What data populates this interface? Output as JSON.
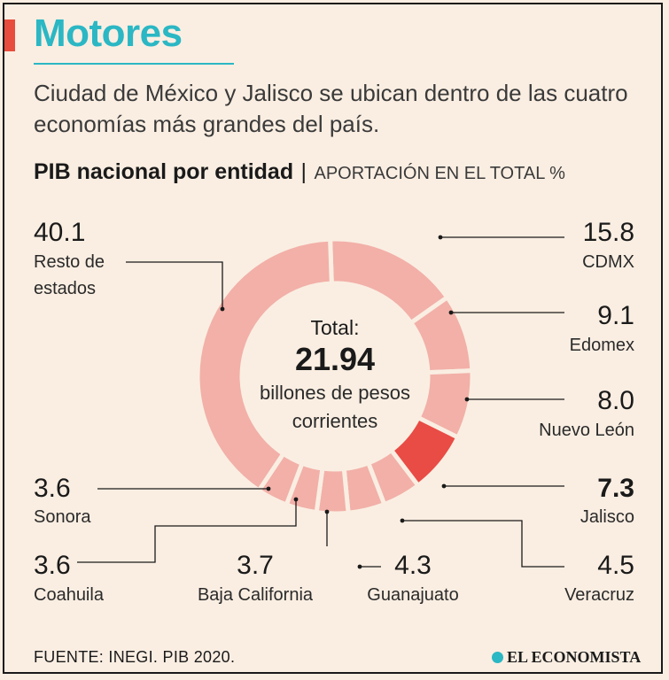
{
  "header": {
    "title": "Motores",
    "subtitle": "Ciudad de México y Jalisco se ubican dentro de las cuatro economías más grandes del país."
  },
  "chart_heading": {
    "title": "PIB nacional por entidad",
    "separator": "|",
    "subtitle": "APORTACIÓN EN EL TOTAL %"
  },
  "center": {
    "label": "Total:",
    "value": "21.94",
    "unit_line1": "billones de pesos",
    "unit_line2": "corrientes"
  },
  "footer": {
    "source": "FUENTE: INEGI. PIB 2020.",
    "brand": "EL ECONOMISTA"
  },
  "colors": {
    "accent": "#2bb7c4",
    "red": "#e84c3d",
    "slice": "#f2b0a8",
    "slice_highlight": "#e84c45",
    "background": "#faeee2"
  },
  "chart_data": {
    "type": "pie",
    "donut": true,
    "title": "PIB nacional por entidad",
    "subtitle": "APORTACIÓN EN EL TOTAL %",
    "unit": "%",
    "total_label": "21.94 billones de pesos corrientes",
    "slices": [
      {
        "label": "CDMX",
        "value": 15.8,
        "value_text": "15.8"
      },
      {
        "label": "Edomex",
        "value": 9.1,
        "value_text": "9.1"
      },
      {
        "label": "Nuevo León",
        "value": 8.0,
        "value_text": "8.0"
      },
      {
        "label": "Jalisco",
        "value": 7.3,
        "value_text": "7.3",
        "highlight": true
      },
      {
        "label": "Veracruz",
        "value": 4.5,
        "value_text": "4.5"
      },
      {
        "label": "Guanajuato",
        "value": 4.3,
        "value_text": "4.3"
      },
      {
        "label": "Baja California",
        "value": 3.7,
        "value_text": "3.7"
      },
      {
        "label": "Coahuila",
        "value": 3.6,
        "value_text": "3.6"
      },
      {
        "label": "Sonora",
        "value": 3.6,
        "value_text": "3.6"
      },
      {
        "label": "Resto de estados",
        "value": 40.1,
        "value_text": "40.1"
      }
    ]
  }
}
